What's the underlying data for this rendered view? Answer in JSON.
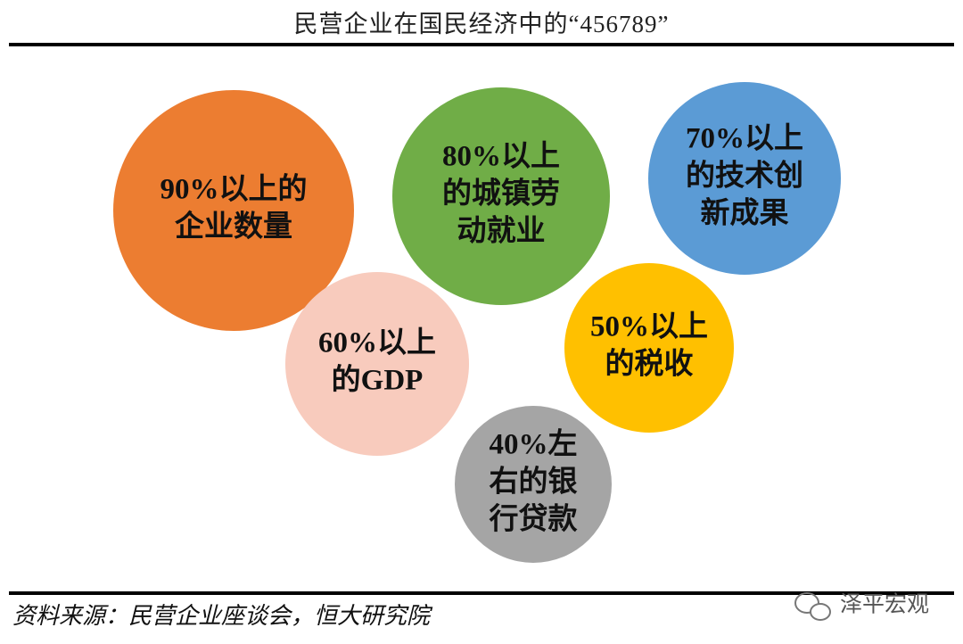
{
  "header": {
    "title": "民营企业在国民经济中的“456789”"
  },
  "nodes": [
    {
      "lines": [
        "90%以上的",
        "企业数量"
      ],
      "color": "#ec7d31"
    },
    {
      "lines": [
        "80%以上",
        "的城镇劳",
        "动就业"
      ],
      "color": "#70ad47"
    },
    {
      "lines": [
        "70%以上",
        "的技术创",
        "新成果"
      ],
      "color": "#5b9bd5"
    },
    {
      "lines": [
        "60%以上",
        "的GDP"
      ],
      "color": "#f8cbbd"
    },
    {
      "lines": [
        "50%以上",
        "的税收"
      ],
      "color": "#ffc000"
    },
    {
      "lines": [
        "40%左",
        "右的银",
        "行贷款"
      ],
      "color": "#a5a5a5"
    }
  ],
  "footer": {
    "source": "资料来源：民营企业座谈会，恒大研究院",
    "watermark": "泽平宏观"
  }
}
